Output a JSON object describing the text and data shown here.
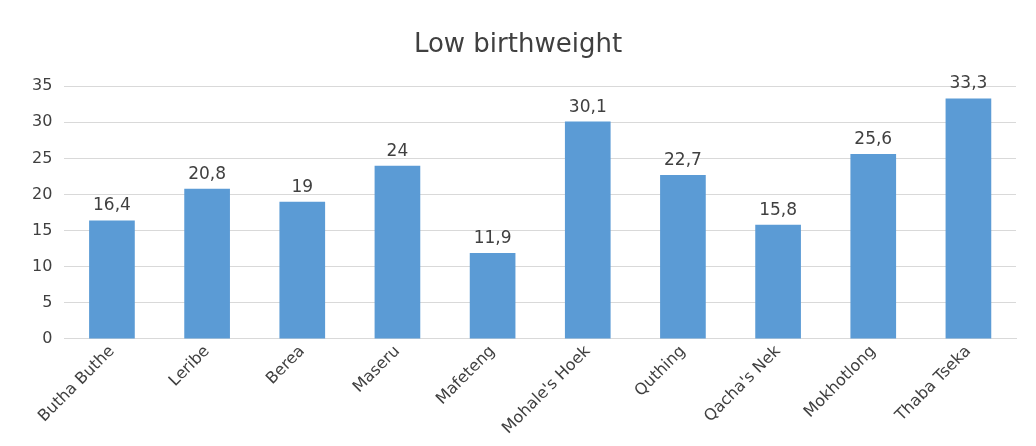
{
  "chart_data": {
    "type": "bar",
    "title": "Low birthweight",
    "categories": [
      "Butha Buthe",
      "Leribe",
      "Berea",
      "Maseru",
      "Mafeteng",
      "Mohale's Hoek",
      "Quthing",
      "Qacha's Nek",
      "Mokhotlong",
      "Thaba Tseka"
    ],
    "values": [
      16.4,
      20.8,
      19,
      24,
      11.9,
      30.1,
      22.7,
      15.8,
      25.6,
      33.3
    ],
    "value_labels": [
      "16,4",
      "20,8",
      "19",
      "24",
      "11,9",
      "30,1",
      "22,7",
      "15,8",
      "25,6",
      "33,3"
    ],
    "color": "#5b9bd5",
    "ylim": [
      0,
      35
    ],
    "yticks": [
      0,
      5,
      10,
      15,
      20,
      25,
      30,
      35
    ],
    "grid": "y",
    "legend": false
  }
}
